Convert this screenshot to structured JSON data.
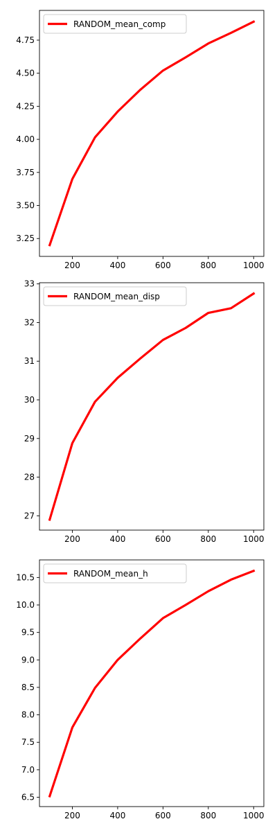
{
  "chart_data": [
    {
      "type": "line",
      "title": "",
      "xlabel": "",
      "ylabel": "",
      "x": [
        100,
        200,
        300,
        400,
        500,
        600,
        700,
        800,
        900,
        1000
      ],
      "series": [
        {
          "name": "RANDOM_mean_comp",
          "color": "#ff0000",
          "values": [
            3.2,
            3.7,
            4.015,
            4.21,
            4.375,
            4.52,
            4.62,
            4.725,
            4.805,
            4.89
          ]
        }
      ],
      "xlim": [
        55,
        1045
      ],
      "ylim": [
        3.115,
        4.975
      ],
      "xticks": [
        "200",
        "400",
        "600",
        "800",
        "1000"
      ],
      "xtick_values": [
        200,
        400,
        600,
        800,
        1000
      ],
      "yticks": [
        "3.25",
        "3.50",
        "3.75",
        "4.00",
        "4.25",
        "4.50",
        "4.75"
      ],
      "ytick_values": [
        3.25,
        3.5,
        3.75,
        4.0,
        4.25,
        4.5,
        4.75
      ],
      "legend": "upper-left",
      "grid": false
    },
    {
      "type": "line",
      "title": "",
      "xlabel": "",
      "ylabel": "",
      "x": [
        100,
        200,
        300,
        400,
        500,
        600,
        700,
        800,
        900,
        1000
      ],
      "series": [
        {
          "name": "RANDOM_mean_disp",
          "color": "#ff0000",
          "values": [
            26.9,
            28.88,
            29.95,
            30.57,
            31.07,
            31.55,
            31.86,
            32.25,
            32.37,
            32.75
          ]
        }
      ],
      "xlim": [
        55,
        1045
      ],
      "ylim": [
        26.63,
        33.03
      ],
      "xticks": [
        "200",
        "400",
        "600",
        "800",
        "1000"
      ],
      "xtick_values": [
        200,
        400,
        600,
        800,
        1000
      ],
      "yticks": [
        "27",
        "28",
        "29",
        "30",
        "31",
        "32",
        "33"
      ],
      "ytick_values": [
        27,
        28,
        29,
        30,
        31,
        32,
        33
      ],
      "legend": "upper-left",
      "grid": false
    },
    {
      "type": "line",
      "title": "",
      "xlabel": "",
      "ylabel": "",
      "x": [
        100,
        200,
        300,
        400,
        500,
        600,
        700,
        800,
        900,
        1000
      ],
      "series": [
        {
          "name": "RANDOM_mean_h",
          "color": "#ff0000",
          "values": [
            6.52,
            7.77,
            8.49,
            9.0,
            9.39,
            9.76,
            10.0,
            10.25,
            10.46,
            10.62
          ]
        }
      ],
      "xlim": [
        55,
        1045
      ],
      "ylim": [
        6.33,
        10.82
      ],
      "xticks": [
        "200",
        "400",
        "600",
        "800",
        "1000"
      ],
      "xtick_values": [
        200,
        400,
        600,
        800,
        1000
      ],
      "yticks": [
        "6.5",
        "7.0",
        "7.5",
        "8.0",
        "8.5",
        "9.0",
        "9.5",
        "10.0",
        "10.5"
      ],
      "ytick_values": [
        6.5,
        7.0,
        7.5,
        8.0,
        8.5,
        9.0,
        9.5,
        10.0,
        10.5
      ],
      "legend": "upper-left",
      "grid": false
    }
  ]
}
